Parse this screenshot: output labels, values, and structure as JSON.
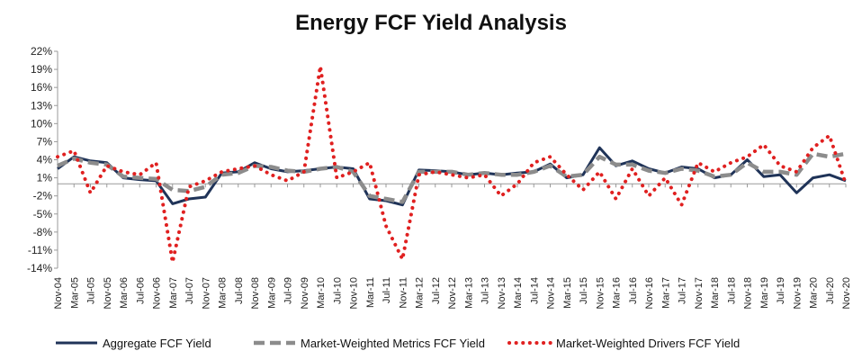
{
  "chart_data": {
    "type": "line",
    "title": "Energy FCF Yield Analysis",
    "xlabel": "",
    "ylabel": "",
    "ylim": [
      -14,
      22
    ],
    "yticks": [
      "22%",
      "19%",
      "16%",
      "13%",
      "10%",
      "7%",
      "4%",
      "1%",
      "-2%",
      "-5%",
      "-8%",
      "-11%",
      "-14%"
    ],
    "ytick_values": [
      22,
      19,
      16,
      13,
      10,
      7,
      4,
      1,
      -2,
      -5,
      -8,
      -11,
      -14
    ],
    "x": [
      "Nov-04",
      "Mar-05",
      "Jul-05",
      "Nov-05",
      "Mar-06",
      "Jul-06",
      "Nov-06",
      "Mar-07",
      "Jul-07",
      "Nov-07",
      "Mar-08",
      "Jul-08",
      "Nov-08",
      "Mar-09",
      "Jul-09",
      "Nov-09",
      "Mar-10",
      "Jul-10",
      "Nov-10",
      "Mar-11",
      "Jul-11",
      "Nov-11",
      "Mar-12",
      "Jul-12",
      "Nov-12",
      "Mar-13",
      "Jul-13",
      "Nov-13",
      "Mar-14",
      "Jul-14",
      "Nov-14",
      "Mar-15",
      "Jul-15",
      "Nov-15",
      "Mar-16",
      "Jul-16",
      "Nov-16",
      "Mar-17",
      "Jul-17",
      "Nov-17",
      "Mar-18",
      "Jul-18",
      "Nov-18",
      "Mar-19",
      "Jul-19",
      "Nov-19",
      "Mar-20",
      "Jul-20",
      "Nov-20"
    ],
    "grid": false,
    "legend_position": "bottom",
    "series": [
      {
        "name": "Aggregate FCF Yield",
        "color": "#1f3358",
        "style": "solid",
        "values": [
          2.5,
          4.5,
          3.8,
          3.5,
          1.0,
          0.7,
          0.5,
          -3.3,
          -2.5,
          -2.2,
          1.8,
          2.0,
          3.5,
          2.5,
          2.0,
          2.2,
          2.5,
          2.8,
          2.5,
          -2.5,
          -2.8,
          -3.5,
          2.3,
          2.2,
          2.0,
          1.5,
          1.8,
          1.5,
          1.8,
          2.0,
          3.3,
          1.0,
          1.5,
          6.0,
          3.0,
          3.8,
          2.5,
          1.8,
          2.8,
          2.5,
          1.0,
          1.5,
          4.0,
          1.2,
          1.5,
          -1.5,
          1.0,
          1.5,
          0.5
        ]
      },
      {
        "name": "Market-Weighted Metrics FCF Yield",
        "color": "#8c8c8c",
        "style": "dashed",
        "values": [
          3.0,
          4.2,
          3.5,
          3.2,
          1.2,
          1.0,
          0.8,
          -1.0,
          -1.2,
          -0.5,
          1.5,
          1.8,
          3.0,
          2.8,
          2.2,
          2.0,
          2.5,
          2.8,
          2.0,
          -2.0,
          -2.5,
          -3.0,
          2.0,
          2.0,
          2.0,
          1.5,
          1.8,
          1.5,
          1.5,
          2.0,
          3.0,
          1.2,
          1.5,
          4.5,
          3.2,
          3.2,
          2.2,
          1.8,
          2.5,
          2.2,
          1.2,
          1.5,
          3.5,
          2.0,
          2.0,
          1.5,
          5.0,
          4.5,
          5.0
        ]
      },
      {
        "name": "Market-Weighted Drivers FCF Yield",
        "color": "#e02020",
        "style": "dotted",
        "values": [
          4.5,
          5.5,
          -1.5,
          3.0,
          2.0,
          1.5,
          3.5,
          -13.0,
          -0.5,
          0.5,
          2.0,
          2.5,
          3.0,
          1.5,
          0.5,
          2.0,
          19.5,
          1.0,
          2.0,
          3.5,
          -7.0,
          -12.5,
          1.5,
          2.0,
          1.5,
          1.0,
          1.5,
          -2.0,
          0.0,
          3.5,
          4.5,
          1.5,
          -1.0,
          2.0,
          -2.5,
          2.5,
          -2.0,
          1.0,
          -3.5,
          3.5,
          2.0,
          3.5,
          4.5,
          6.5,
          3.0,
          2.0,
          6.0,
          8.0,
          0.0
        ]
      }
    ]
  }
}
